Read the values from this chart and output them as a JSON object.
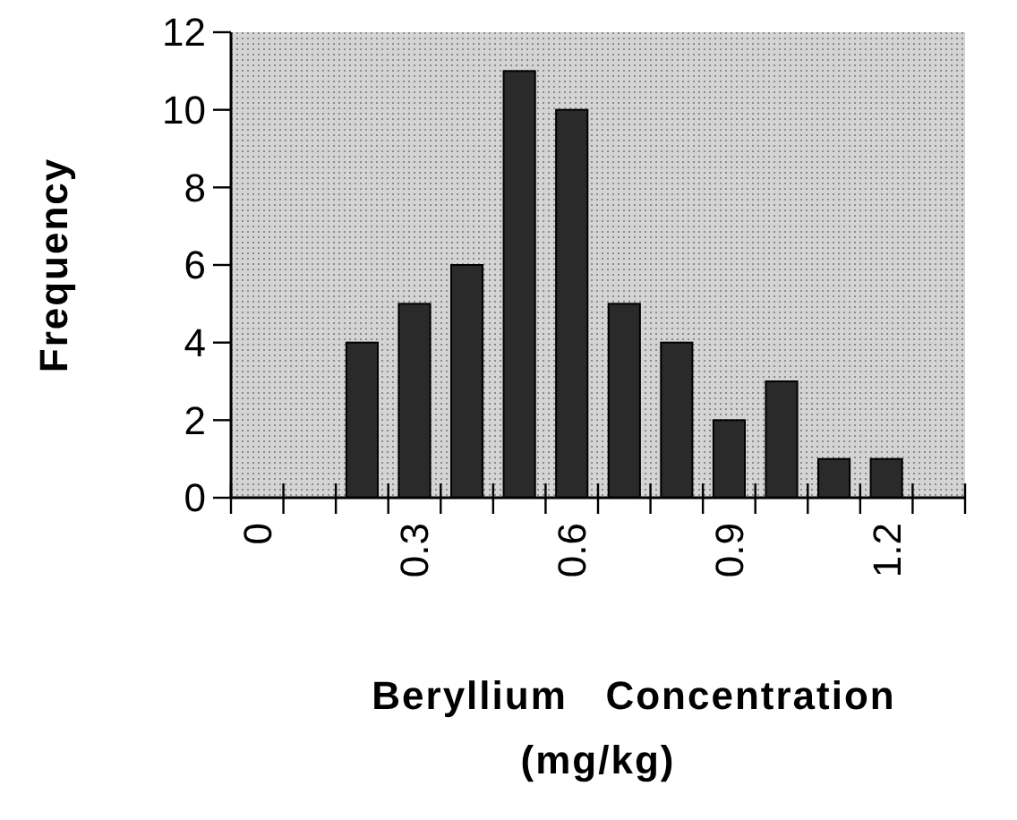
{
  "chart_data": {
    "type": "bar",
    "xlabel": "Beryllium   Concentration\n(mg/kg)",
    "ylabel": "Frequency",
    "categories": [
      "0",
      null,
      null,
      "0.3",
      null,
      null,
      "0.6",
      null,
      null,
      "0.9",
      null,
      null,
      "1.2",
      null
    ],
    "values": [
      0,
      0,
      4,
      5,
      6,
      11,
      10,
      5,
      4,
      2,
      3,
      1,
      1,
      0
    ],
    "color": "#2a2a2a",
    "ylim": [
      0,
      12
    ],
    "yticks": [
      0,
      2,
      4,
      6,
      8,
      10,
      12
    ],
    "grid": false
  }
}
